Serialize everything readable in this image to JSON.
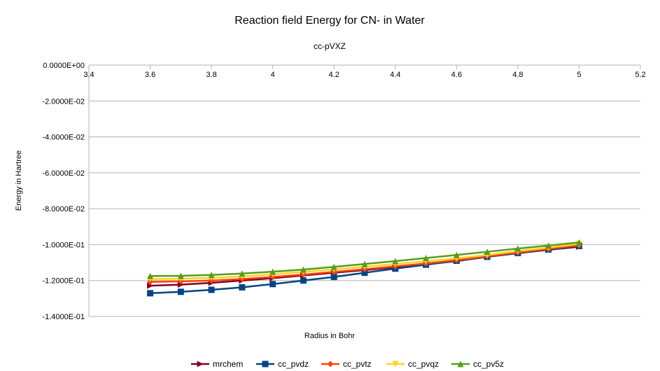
{
  "chart_data": {
    "type": "line",
    "title": "Reaction field Energy for CN- in Water",
    "subtitle": "cc-pVXZ",
    "xlabel": "Radius in Bohr",
    "ylabel": "Energy in Hartree",
    "xlim": [
      3.4,
      5.2
    ],
    "ylim": [
      -0.14,
      0
    ],
    "x_ticks": [
      "3.4",
      "3.6",
      "3.8",
      "4",
      "4.2",
      "4.4",
      "4.6",
      "4.8",
      "5",
      "5.2"
    ],
    "y_ticks": [
      "0.0000E+00",
      "-2.0000E-02",
      "-4.0000E-02",
      "-6.0000E-02",
      "-8.0000E-02",
      "-1.0000E-01",
      "-1.2000E-01",
      "-1.4000E-01"
    ],
    "x_tick_values": [
      3.4,
      3.6,
      3.8,
      4.0,
      4.2,
      4.4,
      4.6,
      4.8,
      5.0,
      5.2
    ],
    "y_tick_values": [
      0,
      -0.02,
      -0.04,
      -0.06,
      -0.08,
      -0.1,
      -0.12,
      -0.14
    ],
    "grid": "horizontal",
    "legend_position": "bottom",
    "x": [
      3.6,
      3.7,
      3.8,
      3.9,
      4.0,
      4.1,
      4.2,
      4.3,
      4.4,
      4.5,
      4.6,
      4.7,
      4.8,
      4.9,
      5.0
    ],
    "series": [
      {
        "name": "mrchem",
        "color": "#7f0021",
        "marker": "triangle-right",
        "values": [
          -0.1229,
          -0.1223,
          -0.1213,
          -0.12,
          -0.1187,
          -0.1172,
          -0.1157,
          -0.1142,
          -0.1126,
          -0.111,
          -0.1092,
          -0.1068,
          -0.1048,
          -0.1029,
          -0.1012
        ]
      },
      {
        "name": "cc_pvdz",
        "color": "#004586",
        "marker": "square",
        "values": [
          -0.1271,
          -0.1263,
          -0.1252,
          -0.1238,
          -0.122,
          -0.12,
          -0.118,
          -0.1157,
          -0.1134,
          -0.1112,
          -0.109,
          -0.1068,
          -0.1047,
          -0.1027,
          -0.1008
        ]
      },
      {
        "name": "cc_pvtz",
        "color": "#ff420e",
        "marker": "diamond",
        "values": [
          -0.1208,
          -0.1205,
          -0.12,
          -0.1192,
          -0.118,
          -0.1167,
          -0.1152,
          -0.1137,
          -0.1121,
          -0.1105,
          -0.1087,
          -0.1065,
          -0.1044,
          -0.1024,
          -0.1004
        ]
      },
      {
        "name": "cc_pvqz",
        "color": "#ffd320",
        "marker": "triangle-down",
        "values": [
          -0.1192,
          -0.119,
          -0.1185,
          -0.1177,
          -0.1165,
          -0.1152,
          -0.1138,
          -0.1123,
          -0.1108,
          -0.1093,
          -0.1077,
          -0.1058,
          -0.1036,
          -0.1017,
          -0.0996
        ]
      },
      {
        "name": "cc_pv5z",
        "color": "#579d1c",
        "marker": "triangle-up",
        "values": [
          -0.1175,
          -0.1174,
          -0.1169,
          -0.1161,
          -0.1151,
          -0.1139,
          -0.1124,
          -0.1108,
          -0.1092,
          -0.1075,
          -0.1058,
          -0.104,
          -0.1022,
          -0.1005,
          -0.0988
        ]
      }
    ]
  }
}
